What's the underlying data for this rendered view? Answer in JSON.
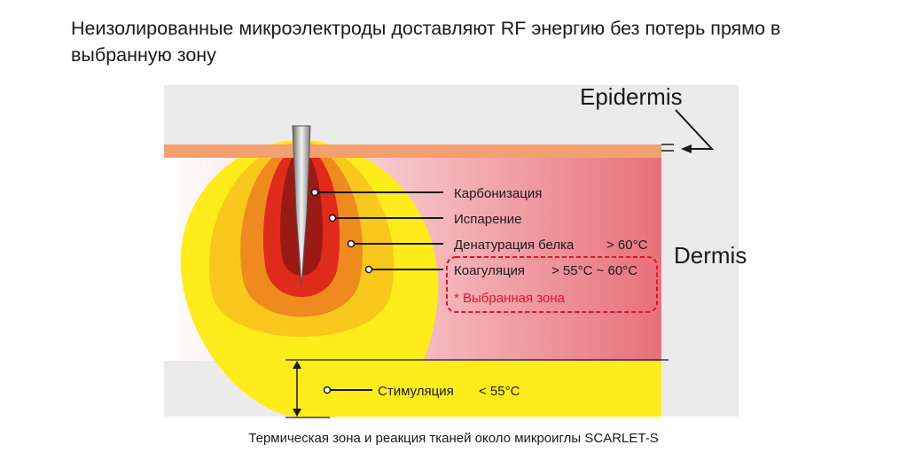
{
  "title": "Неизолированные микроэлектроды доставляют RF энергию без потерь прямо в выбранную зону",
  "caption": "Термическая зона и реакция тканей около микроиглы SCARLET-S",
  "layers": {
    "epidermis": "Epidermis",
    "dermis": "Dermis"
  },
  "zones": [
    {
      "label": "Карбонизация",
      "temp": ""
    },
    {
      "label": "Испарение",
      "temp": ""
    },
    {
      "label": "Денатурация белка",
      "temp": "> 60°C"
    },
    {
      "label": "Коагуляция",
      "temp": "> 55°C ~ 60°C"
    },
    {
      "label": "Стимуляция",
      "temp": "< 55°C"
    }
  ],
  "selected_zone_note": "* Выбранная зона",
  "colors": {
    "epidermis": "#f2a070",
    "dermis_gradient_end": "#e8707a",
    "zone_stimulation": "#ffec1a",
    "zone_coagulation": "#f8c81c",
    "zone_denaturation": "#ef8a1e",
    "zone_vaporization": "#e02a1c",
    "zone_carbonization": "#9a1a14",
    "highlight": "#e8112d"
  }
}
